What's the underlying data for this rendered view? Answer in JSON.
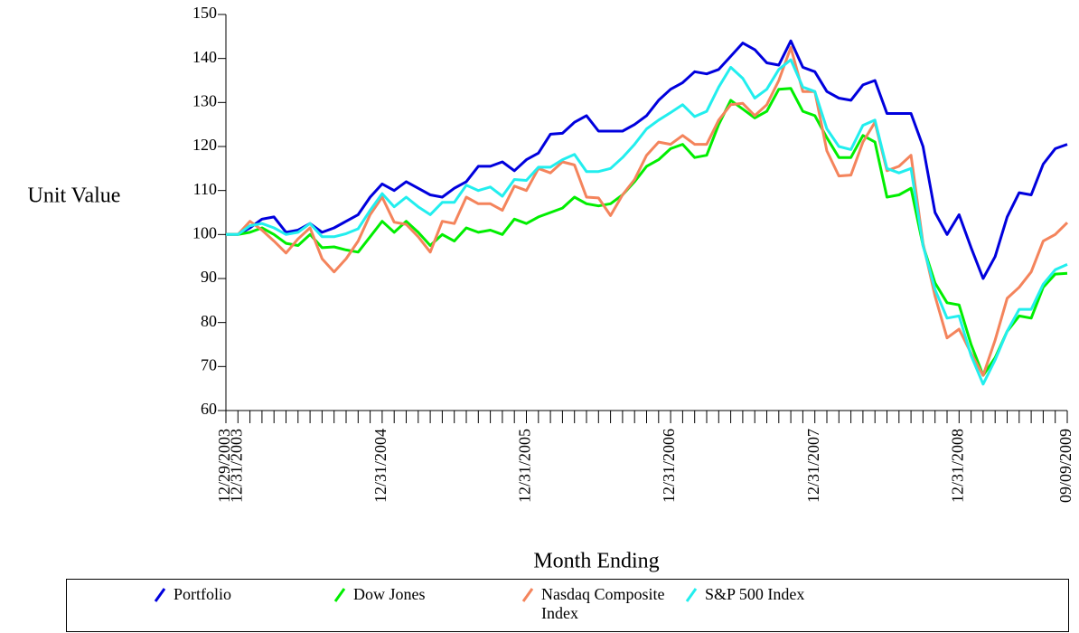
{
  "chart_data": {
    "type": "line",
    "y_label": "Unit Value",
    "x_label": "Month Ending",
    "categories": [
      "12/29/2003",
      "12/31/2003",
      null,
      null,
      null,
      null,
      null,
      null,
      null,
      null,
      null,
      null,
      null,
      "12/31/2004",
      null,
      null,
      null,
      null,
      null,
      null,
      null,
      null,
      null,
      null,
      null,
      "12/31/2005",
      null,
      null,
      null,
      null,
      null,
      null,
      null,
      null,
      null,
      null,
      null,
      "12/31/2006",
      null,
      null,
      null,
      null,
      null,
      null,
      null,
      null,
      null,
      null,
      null,
      "12/31/2007",
      null,
      null,
      null,
      null,
      null,
      null,
      null,
      null,
      null,
      null,
      null,
      "12/31/2008",
      null,
      null,
      null,
      null,
      null,
      null,
      null,
      null,
      "09/09/2009"
    ],
    "ylim": [
      60,
      150
    ],
    "yticks": [
      60,
      70,
      80,
      90,
      100,
      110,
      120,
      130,
      140,
      150
    ],
    "grid": false,
    "legend": "bottom",
    "series": [
      {
        "name": "Portfolio",
        "color": "#0000dd",
        "values": [
          100,
          100,
          101.5,
          103.5,
          104,
          100.5,
          101,
          102.5,
          100.5,
          101.5,
          103,
          104.5,
          108.5,
          111.5,
          110,
          112,
          110.5,
          109,
          108.5,
          110.5,
          112,
          115.5,
          115.5,
          116.5,
          114.5,
          117,
          118.5,
          122.8,
          123,
          125.5,
          127,
          123.5,
          123.5,
          123.5,
          125,
          127,
          130.5,
          133,
          134.5,
          137,
          136.5,
          137.5,
          140.5,
          143.5,
          142,
          139,
          138.5,
          144,
          138,
          137,
          132.5,
          131,
          130.5,
          134,
          135,
          127.5,
          127.5,
          127.5,
          120,
          105,
          100,
          104.5,
          97,
          90,
          95,
          104,
          109.5,
          109,
          116,
          119.5,
          120.5
        ]
      },
      {
        "name": "Dow Jones",
        "color": "#00ee00",
        "values": [
          100,
          100,
          100.5,
          101.5,
          100,
          98,
          97.5,
          100,
          97,
          97.2,
          96.5,
          96,
          99.5,
          103,
          100.5,
          103,
          100.5,
          97.5,
          100,
          98.5,
          101.5,
          100.5,
          101,
          100,
          103.5,
          102.5,
          104,
          105,
          106,
          108.5,
          107,
          106.5,
          107,
          109,
          112,
          115.5,
          117,
          119.5,
          120.5,
          117.5,
          118,
          125,
          130.5,
          128.5,
          126.5,
          128,
          133,
          133.2,
          128,
          127,
          122,
          117.5,
          117.5,
          122.5,
          121,
          108.5,
          109,
          110.5,
          97.5,
          89,
          84.5,
          84,
          75,
          68,
          72,
          78,
          81.5,
          81,
          88,
          91,
          91.2
        ]
      },
      {
        "name": "Nasdaq Composite Index",
        "color": "#f4845c",
        "values": [
          100,
          100,
          103,
          101,
          98.5,
          95.8,
          99,
          101.5,
          94.5,
          91.5,
          94.5,
          98.5,
          104.5,
          108.5,
          102.8,
          102.3,
          99.5,
          96,
          103,
          102.5,
          108.5,
          107,
          107,
          105.5,
          111,
          110,
          115,
          114,
          116.5,
          115.8,
          108.5,
          108.3,
          104.3,
          109,
          112.5,
          118,
          121,
          120.5,
          122.5,
          120.5,
          120.5,
          126,
          129.5,
          129.8,
          127,
          129.5,
          135,
          142.5,
          132.5,
          132.5,
          119,
          113.3,
          113.5,
          121,
          125.5,
          114.5,
          115.5,
          118,
          98,
          86,
          76.5,
          78.5,
          73,
          68,
          76,
          85.5,
          88,
          91.5,
          98.5,
          100,
          102.7
        ]
      },
      {
        "name": "S&P 500 Index",
        "color": "#22eeee",
        "values": [
          100,
          100,
          102,
          102.5,
          101.5,
          100,
          100.5,
          102.5,
          99.5,
          99.5,
          100.2,
          101.3,
          105.5,
          109.3,
          106.3,
          108.5,
          106.3,
          104.5,
          107.3,
          107.3,
          111.2,
          110,
          110.8,
          108.7,
          112.5,
          112.3,
          115.3,
          115.3,
          117,
          118.2,
          114.3,
          114.3,
          115,
          117.5,
          120.5,
          124,
          126,
          127.7,
          129.5,
          126.8,
          128,
          133.5,
          138,
          135.5,
          131,
          133,
          137.5,
          139.7,
          133.5,
          132.5,
          124,
          120,
          119.3,
          124.8,
          126,
          115,
          114,
          115,
          97.5,
          87.5,
          81,
          81.5,
          72.5,
          66,
          71.5,
          78,
          83,
          83,
          88.7,
          92,
          93.2
        ]
      }
    ]
  }
}
